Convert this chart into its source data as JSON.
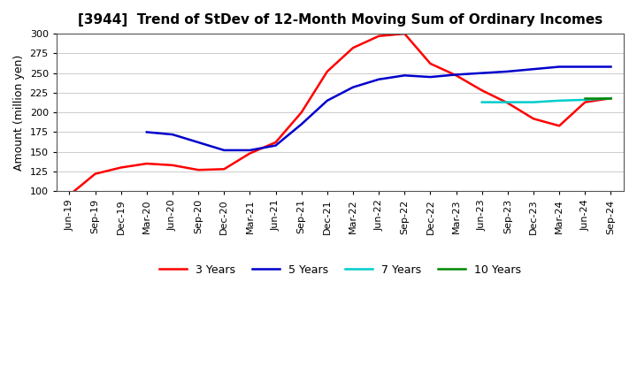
{
  "title": "[3944]  Trend of StDev of 12-Month Moving Sum of Ordinary Incomes",
  "ylabel": "Amount (million yen)",
  "ylim": [
    100,
    300
  ],
  "yticks": [
    100,
    125,
    150,
    175,
    200,
    225,
    250,
    275,
    300
  ],
  "x_labels": [
    "Jun-19",
    "Sep-19",
    "Dec-19",
    "Mar-20",
    "Jun-20",
    "Sep-20",
    "Dec-20",
    "Mar-21",
    "Jun-21",
    "Sep-21",
    "Dec-21",
    "Mar-22",
    "Jun-22",
    "Sep-22",
    "Dec-22",
    "Mar-23",
    "Jun-23",
    "Sep-23",
    "Dec-23",
    "Mar-24",
    "Jun-24",
    "Sep-24"
  ],
  "series": {
    "3 Years": {
      "color": "#ff0000",
      "values": [
        95,
        122,
        130,
        135,
        133,
        127,
        128,
        148,
        162,
        200,
        252,
        282,
        297,
        300,
        262,
        247,
        228,
        212,
        192,
        183,
        213,
        218
      ]
    },
    "5 Years": {
      "color": "#0000cc",
      "values": [
        null,
        null,
        null,
        175,
        172,
        162,
        152,
        152,
        158,
        185,
        215,
        232,
        242,
        247,
        245,
        248,
        250,
        252,
        255,
        258,
        258,
        258
      ]
    },
    "7 Years": {
      "color": "#00cccc",
      "values": [
        null,
        null,
        null,
        null,
        null,
        null,
        null,
        null,
        null,
        null,
        null,
        null,
        null,
        null,
        null,
        null,
        213,
        213,
        213,
        215,
        216,
        218
      ]
    },
    "10 Years": {
      "color": "#008800",
      "values": [
        null,
        null,
        null,
        null,
        null,
        null,
        null,
        null,
        null,
        null,
        null,
        null,
        null,
        null,
        null,
        null,
        null,
        null,
        null,
        null,
        218,
        218
      ]
    }
  }
}
